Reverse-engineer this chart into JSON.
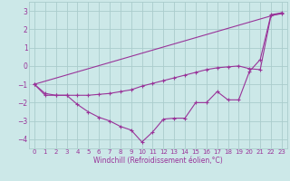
{
  "xlabel": "Windchill (Refroidissement éolien,°C)",
  "bg_color": "#cce8e8",
  "grid_color": "#aacccc",
  "line_color": "#993399",
  "xlim": [
    -0.5,
    23.5
  ],
  "ylim": [
    -4.5,
    3.5
  ],
  "xticks": [
    0,
    1,
    2,
    3,
    4,
    5,
    6,
    7,
    8,
    9,
    10,
    11,
    12,
    13,
    14,
    15,
    16,
    17,
    18,
    19,
    20,
    21,
    22,
    23
  ],
  "yticks": [
    -4,
    -3,
    -2,
    -1,
    0,
    1,
    2,
    3
  ],
  "line1_x": [
    0,
    1,
    2,
    3,
    4,
    5,
    6,
    7,
    8,
    9,
    10,
    11,
    12,
    13,
    14,
    15,
    16,
    17,
    18,
    19,
    20,
    21,
    22,
    23
  ],
  "line1_y": [
    -1.0,
    -1.5,
    -1.6,
    -1.6,
    -2.1,
    -2.5,
    -2.8,
    -3.0,
    -3.3,
    -3.5,
    -4.15,
    -3.6,
    -2.9,
    -2.85,
    -2.85,
    -2.0,
    -2.0,
    -1.4,
    -1.85,
    -1.85,
    -0.3,
    0.35,
    2.8,
    2.9
  ],
  "line2_x": [
    0,
    23
  ],
  "line2_y": [
    -1.0,
    2.9
  ],
  "line3_x": [
    0,
    1,
    2,
    3,
    4,
    5,
    6,
    7,
    8,
    9,
    10,
    11,
    12,
    13,
    14,
    15,
    16,
    17,
    18,
    19,
    20,
    21,
    22,
    23
  ],
  "line3_y": [
    -1.0,
    -1.6,
    -1.6,
    -1.6,
    -1.6,
    -1.6,
    -1.55,
    -1.5,
    -1.4,
    -1.3,
    -1.1,
    -0.95,
    -0.8,
    -0.65,
    -0.5,
    -0.35,
    -0.2,
    -0.1,
    -0.05,
    0.0,
    -0.15,
    -0.2,
    2.75,
    2.85
  ]
}
